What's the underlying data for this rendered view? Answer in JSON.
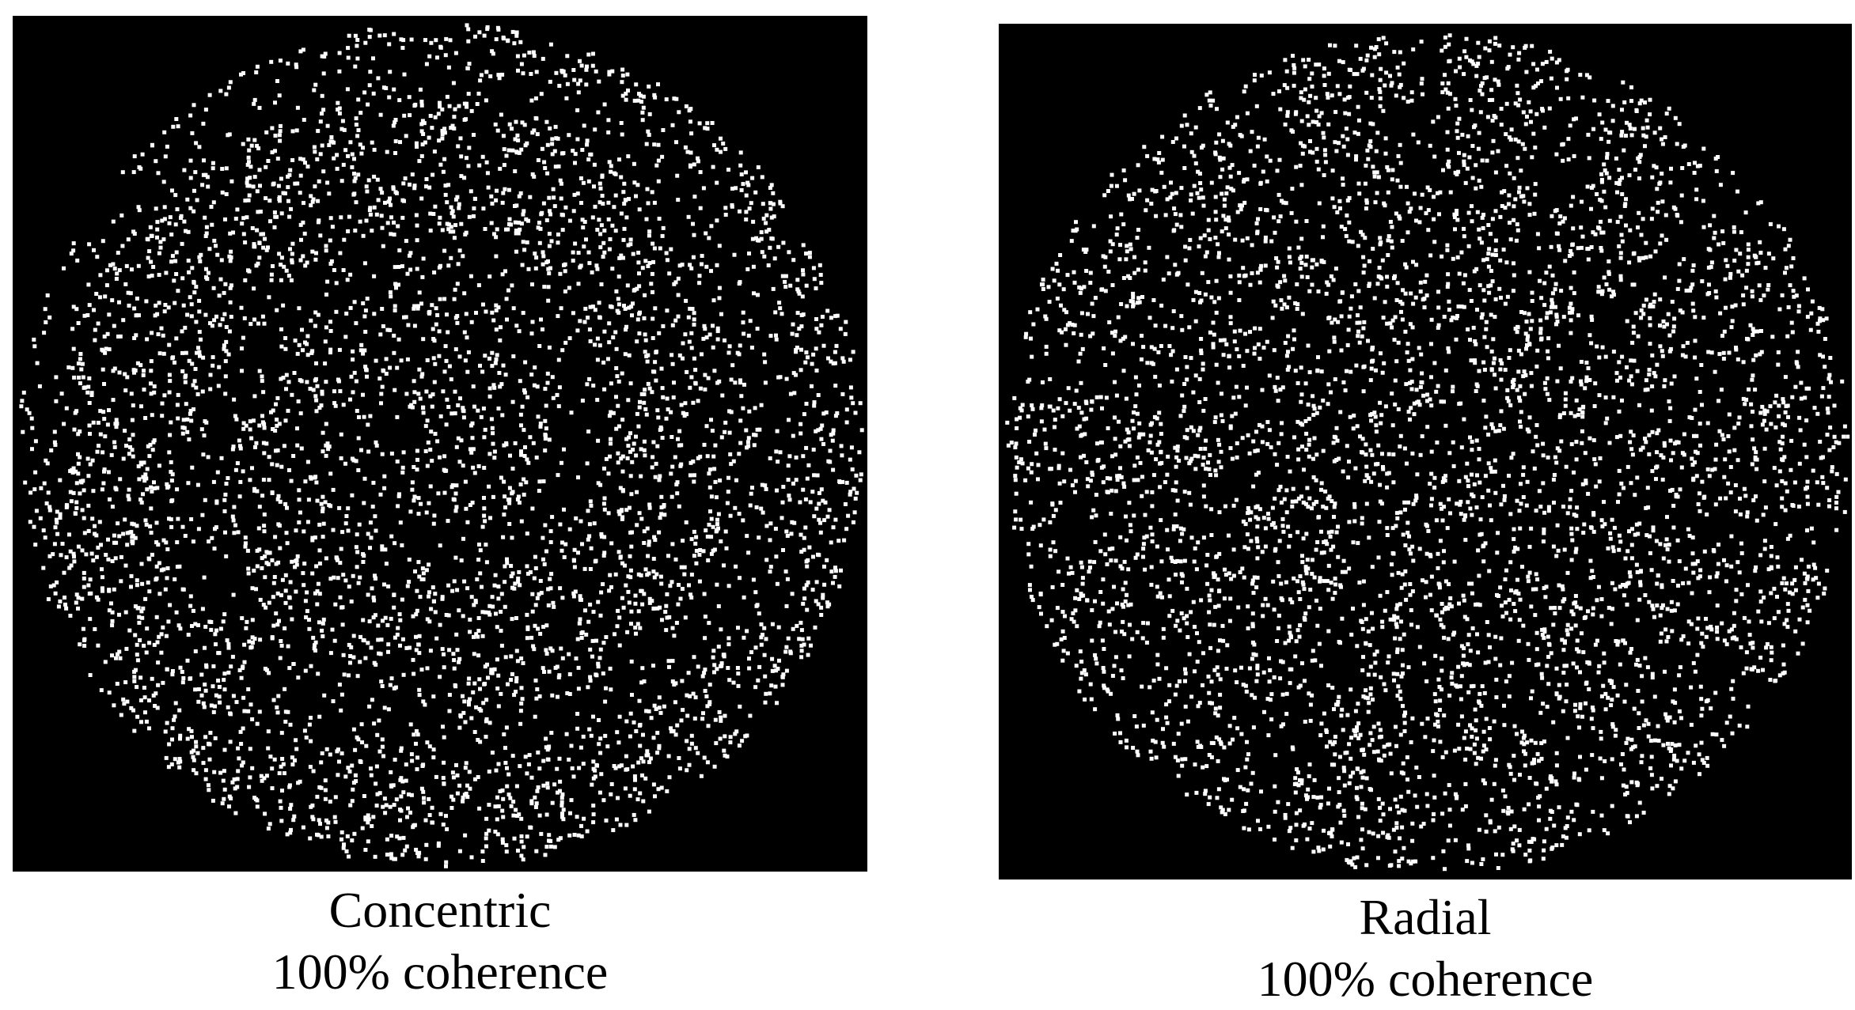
{
  "background_color": "#000000",
  "dot_color": "#ffffff",
  "panels": [
    {
      "id": "concentric",
      "pattern": "concentric",
      "title": "Concentric",
      "subtitle": "100% coherence",
      "coherence_percent": 100
    },
    {
      "id": "radial",
      "pattern": "radial",
      "title": "Radial",
      "subtitle": "100% coherence",
      "coherence_percent": 100
    }
  ]
}
